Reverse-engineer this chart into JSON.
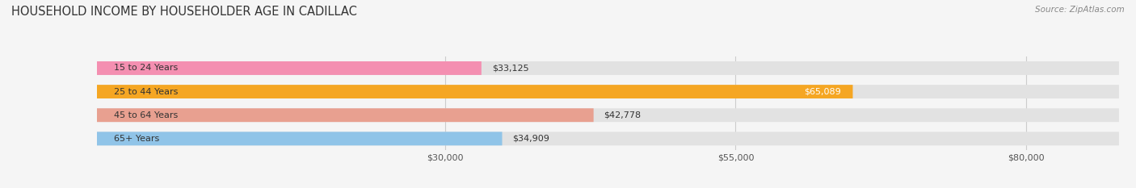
{
  "title": "HOUSEHOLD INCOME BY HOUSEHOLDER AGE IN CADILLAC",
  "source_text": "Source: ZipAtlas.com",
  "categories": [
    "15 to 24 Years",
    "25 to 44 Years",
    "45 to 64 Years",
    "65+ Years"
  ],
  "values": [
    33125,
    65089,
    42778,
    34909
  ],
  "bar_colors": [
    "#f48fb1",
    "#f5a623",
    "#e8a090",
    "#90c4e8"
  ],
  "label_colors": [
    "#444444",
    "#ffffff",
    "#444444",
    "#444444"
  ],
  "xmin": 0,
  "xmax": 88000,
  "xticks": [
    30000,
    55000,
    80000
  ],
  "xtick_labels": [
    "$30,000",
    "$55,000",
    "$80,000"
  ],
  "bar_height": 0.58,
  "background_color": "#f5f5f5",
  "bar_bg_color": "#e2e2e2",
  "title_fontsize": 10.5,
  "label_fontsize": 8.0,
  "tick_fontsize": 8.0,
  "source_fontsize": 7.5
}
